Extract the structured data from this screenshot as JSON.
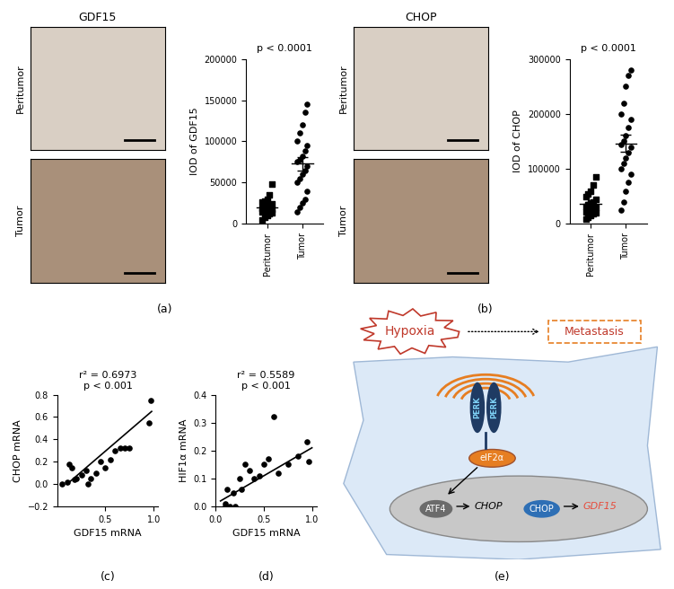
{
  "chart_data": [
    {
      "panel": "(a)",
      "type": "dot",
      "annotation": "p < 0.0001",
      "ylabel": "IOD of GDF15",
      "color": "#000000",
      "ylim": [
        0,
        200000
      ],
      "yticks": [
        0,
        50000,
        100000,
        150000,
        200000
      ],
      "series": [
        {
          "name": "Peritumor",
          "marker": "square",
          "mean": 20200,
          "error": 2300,
          "values": [
            5000,
            8000,
            10000,
            12000,
            13000,
            14000,
            15000,
            16000,
            17000,
            18000,
            19000,
            20000,
            21000,
            22000,
            24000,
            26000,
            28000,
            30000,
            35000,
            48000
          ]
        },
        {
          "name": "Tumor",
          "marker": "circle",
          "mean": 72900,
          "error": 8300,
          "values": [
            15000,
            20000,
            25000,
            30000,
            40000,
            50000,
            55000,
            60000,
            65000,
            70000,
            75000,
            78000,
            82000,
            88000,
            95000,
            100000,
            110000,
            120000,
            135000,
            145000
          ]
        }
      ]
    },
    {
      "panel": "(b)",
      "type": "dot",
      "annotation": "p < 0.0001",
      "ylabel": "IOD of CHOP",
      "color": "#000000",
      "ylim": [
        0,
        300000
      ],
      "yticks": [
        0,
        100000,
        200000,
        300000
      ],
      "series": [
        {
          "name": "Peritumor",
          "marker": "square",
          "mean": 35650,
          "error": 4500,
          "values": [
            8000,
            12000,
            15000,
            18000,
            20000,
            22000,
            24000,
            26000,
            28000,
            30000,
            32000,
            35000,
            38000,
            40000,
            45000,
            50000,
            55000,
            60000,
            70000,
            85000
          ]
        },
        {
          "name": "Tumor",
          "marker": "circle",
          "mean": 146500,
          "error": 16000,
          "values": [
            25000,
            40000,
            60000,
            75000,
            90000,
            100000,
            110000,
            120000,
            130000,
            140000,
            145000,
            150000,
            160000,
            175000,
            190000,
            200000,
            220000,
            250000,
            270000,
            280000
          ]
        }
      ]
    },
    {
      "panel": "(c)",
      "type": "scatter",
      "annotation": [
        "r² = 0.6973",
        "p < 0.001"
      ],
      "xlabel": "GDF15 mRNA",
      "ylabel": "CHOP mRNA",
      "color": "#000000",
      "marker": "circle",
      "x": [
        0.05,
        0.1,
        0.12,
        0.15,
        0.18,
        0.2,
        0.25,
        0.3,
        0.32,
        0.35,
        0.4,
        0.45,
        0.5,
        0.55,
        0.6,
        0.65,
        0.7,
        0.75,
        0.95,
        0.97
      ],
      "values": [
        0.0,
        0.02,
        0.18,
        0.15,
        0.04,
        0.05,
        0.08,
        0.12,
        0.0,
        0.05,
        0.1,
        0.2,
        0.15,
        0.22,
        0.3,
        0.32,
        0.32,
        0.32,
        0.55,
        0.75
      ],
      "fit_line": {
        "x": [
          0.1,
          0.98
        ],
        "y": [
          0.0,
          0.65
        ]
      },
      "xlim": [
        0,
        1.05
      ],
      "xticks": [
        0.5,
        1.0
      ],
      "ylim": [
        -0.2,
        0.8
      ],
      "yticks": [
        {
          "value": -0.2,
          "label": "−0.2"
        },
        0.0,
        0.2,
        0.4,
        0.6,
        0.8
      ]
    },
    {
      "panel": "(d)",
      "type": "scatter",
      "annotation": [
        "r² = 0.5589",
        "p < 0.001"
      ],
      "xlabel": "GDF15 mRNA",
      "ylabel": "HIF1α mRNA",
      "color": "#000000",
      "marker": "circle",
      "x": [
        0.1,
        0.1,
        0.12,
        0.15,
        0.18,
        0.2,
        0.25,
        0.27,
        0.3,
        0.35,
        0.4,
        0.45,
        0.5,
        0.55,
        0.6,
        0.65,
        0.75,
        0.85,
        0.95,
        0.97
      ],
      "values": [
        0.0,
        0.01,
        0.06,
        0.0,
        0.05,
        0.0,
        0.1,
        0.06,
        0.15,
        0.13,
        0.1,
        0.11,
        0.15,
        0.17,
        0.32,
        0.12,
        0.15,
        0.18,
        0.23,
        0.16
      ],
      "fit_line": {
        "x": [
          0.05,
          1.0
        ],
        "y": [
          0.02,
          0.21
        ]
      },
      "xlim": [
        0,
        1.05
      ],
      "xticks": [
        0.0,
        0.5,
        1.0
      ],
      "ylim": [
        0,
        0.4
      ],
      "yticks": [
        0.0,
        0.1,
        0.2,
        0.3,
        0.4
      ]
    }
  ],
  "images": [
    {
      "title": "GDF15",
      "rows": [
        "Peritumor",
        "Tumor"
      ]
    },
    {
      "title": "CHOP",
      "rows": [
        "Peritumor",
        "Tumor"
      ]
    }
  ],
  "diagram": {
    "panel": "(e)",
    "stress": "Hypoxia",
    "outcome": "Metastasis",
    "receptor": [
      "PERK",
      "PERK"
    ],
    "kinase": "eIF2α",
    "factor": "ATF4",
    "gene1": "CHOP",
    "protein": "CHOP",
    "gene2": "GDF15"
  }
}
